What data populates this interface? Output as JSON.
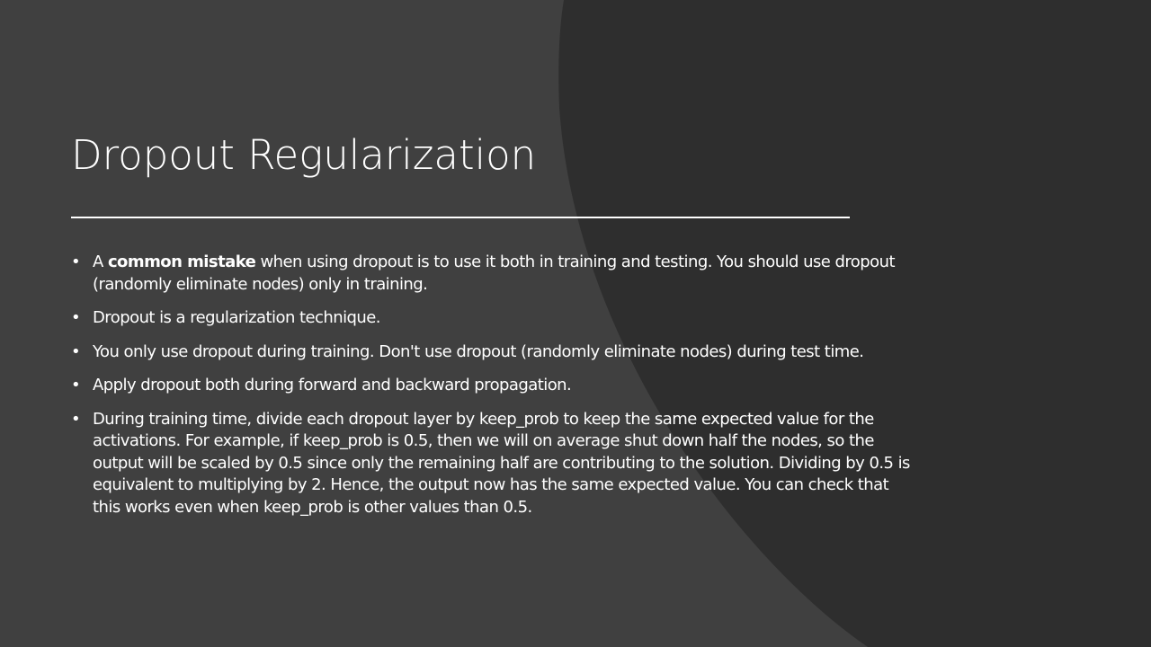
{
  "slide": {
    "title": "Dropout Regularization",
    "bullet_symbol": "•",
    "bullets": [
      {
        "prefix": "A ",
        "bold": "common mistake",
        "suffix": " when using dropout is to use it both in training and testing. You should use dropout (randomly eliminate nodes) only in training."
      },
      {
        "text": "Dropout is a regularization technique."
      },
      {
        "text": "You only use dropout during training. Don't use dropout (randomly eliminate nodes) during test time."
      },
      {
        "text": "Apply dropout both during forward and backward propagation."
      },
      {
        "text": "During training time, divide each dropout layer by keep_prob to keep the same expected value for the activations. For example, if keep_prob is 0.5, then we will on average shut down half the nodes, so the output will be scaled by 0.5 since only the remaining half are contributing to the solution. Dividing by 0.5 is equivalent to multiplying by 2. Hence, the output now has the same expected value. You can check that this works even when keep_prob is other values than 0.5."
      }
    ]
  },
  "colors": {
    "background": "#404040",
    "shape": "#2e2e2e",
    "text": "#ffffff"
  }
}
